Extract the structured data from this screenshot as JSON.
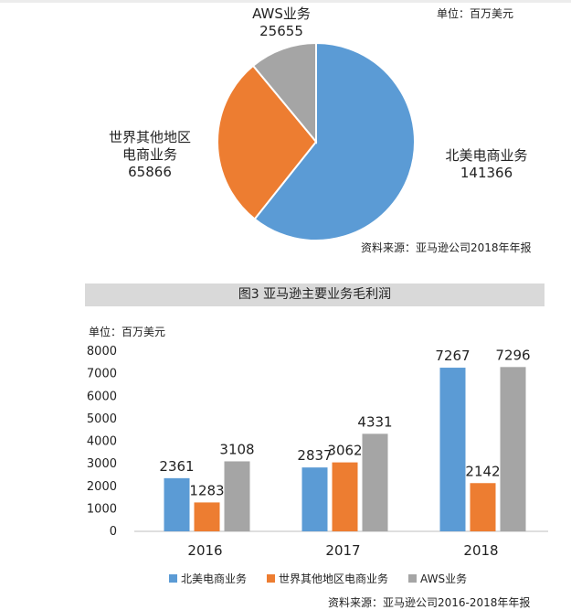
{
  "pie": {
    "unit": "单位：百万美元",
    "source": "资料来源：亚马逊公司2018年年报",
    "chart_data": {
      "type": "pie",
      "slices": [
        {
          "label_lines": [
            "北美电商业务"
          ],
          "value": 141366,
          "color": "#5b9bd5"
        },
        {
          "label_lines": [
            "世界其他地区",
            "电商业务"
          ],
          "value": 65866,
          "color": "#ed7d31"
        },
        {
          "label_lines": [
            "AWS业务"
          ],
          "value": 25655,
          "color": "#a5a5a5"
        }
      ]
    }
  },
  "bar": {
    "title": "图3  亚马逊主要业务毛利润",
    "unit": "单位：百万美元",
    "source": "资料来源：亚马逊公司2016-2018年年报",
    "chart_data": {
      "type": "bar",
      "categories": [
        "2016",
        "2017",
        "2018"
      ],
      "ylim": [
        0,
        8000
      ],
      "yticks": [
        0,
        1000,
        2000,
        3000,
        4000,
        5000,
        6000,
        7000,
        8000
      ],
      "grid": false,
      "legend_position": "bottom",
      "series": [
        {
          "name": "北美电商业务",
          "values": [
            2361,
            2837,
            7267
          ],
          "color": "#5b9bd5"
        },
        {
          "name": "世界其他地区电商业务",
          "values": [
            1283,
            3062,
            2142
          ],
          "color": "#ed7d31"
        },
        {
          "name": "AWS业务",
          "values": [
            3108,
            4331,
            7296
          ],
          "color": "#a5a5a5"
        }
      ]
    }
  }
}
